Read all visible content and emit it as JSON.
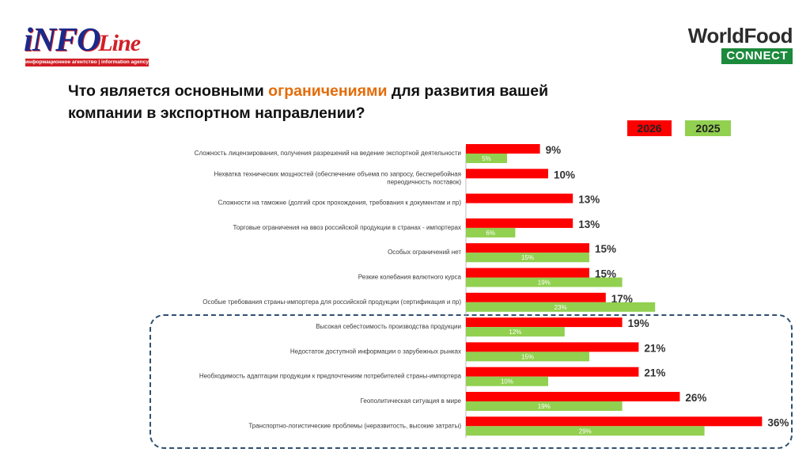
{
  "logos": {
    "infoline": {
      "word": "iNFO",
      "script": "Line",
      "tagline": "информационное агентство | information agency"
    },
    "worldfood": {
      "title": "WorldFood",
      "badge": "CONNECT"
    }
  },
  "title": {
    "part1": "Что является основными ",
    "highlight": "ограничениями",
    "part2": " для развития вашей компании в экспортном направлении?"
  },
  "colors": {
    "series_2026": "#ff0000",
    "series_2025": "#92d050",
    "highlight": "#e36c0a",
    "box_border": "#2f4f6f"
  },
  "chart_data": {
    "type": "bar",
    "orientation": "horizontal",
    "unit": "%",
    "xlim": [
      0,
      40
    ],
    "grid": false,
    "legend": "top-right",
    "categories": [
      [
        "Сложность лицензирования, получения разрешений на ведение экспортной деятельности"
      ],
      [
        "Нехватка технических мощностей (обеспечение объема по запросу, бесперебойная",
        "переодичность поставок)"
      ],
      [
        "Сложности на таможне (долгий срок прохождения, требования к документам и пр)"
      ],
      [
        "Торговые ограничения на ввоз российской продукции в странах - импортерах"
      ],
      [
        "Особых ограничений нет"
      ],
      [
        "Резкие колебания валютного курса"
      ],
      [
        "Особые требования страны-импортера для российской продукции (сертификация и пр)"
      ],
      [
        "Высокая себестоимость производства продукции"
      ],
      [
        "Недостаток доступной информации о зарубежных рынках"
      ],
      [
        "Необходимость адаптации продукции к предпочтениям потребителей страны-импортера"
      ],
      [
        "Геополитическая ситуация в мире"
      ],
      [
        "Транспортно-логистические проблемы (неразвитость, высокие затраты)"
      ]
    ],
    "series": [
      {
        "name": "2026",
        "values": [
          9,
          10,
          13,
          13,
          15,
          15,
          17,
          19,
          21,
          21,
          26,
          36
        ]
      },
      {
        "name": "2025",
        "values": [
          5,
          null,
          null,
          6,
          15,
          19,
          23,
          12,
          15,
          10,
          19,
          29
        ]
      }
    ],
    "highlighted_categories": [
      7,
      8,
      9,
      10,
      11
    ]
  }
}
